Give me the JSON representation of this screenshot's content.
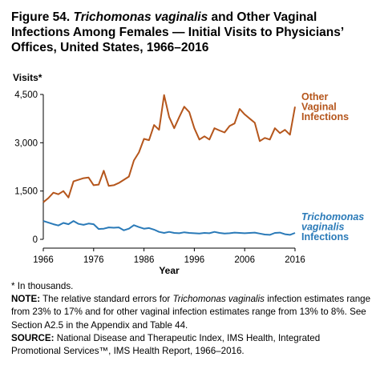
{
  "figure": {
    "title_prefix": "Figure 54. ",
    "title_italic": "Trichomonas vaginalis",
    "title_rest": " and Other Vaginal Infections Among Females — Initial Visits to Physicians’ Offices, United States, 1966–2016"
  },
  "chart_data": {
    "type": "line",
    "ylabel": "Visits*",
    "xlabel": "Year",
    "xlim": [
      1966,
      2016
    ],
    "ylim": [
      0,
      4500
    ],
    "xticks": [
      "1966",
      "1976",
      "1986",
      "1996",
      "2006",
      "2016"
    ],
    "yticks": [
      "0",
      "1,500",
      "3,000",
      "4,500"
    ],
    "grid": false,
    "legend": "inline labels at right end of each series",
    "series": [
      {
        "name_lines": [
          "Other",
          "Vaginal",
          "Infections"
        ],
        "color": "#b5561c",
        "x": [
          1966,
          1967,
          1968,
          1969,
          1970,
          1971,
          1972,
          1973,
          1974,
          1975,
          1976,
          1977,
          1978,
          1979,
          1980,
          1981,
          1982,
          1983,
          1984,
          1985,
          1986,
          1987,
          1988,
          1989,
          1990,
          1991,
          1992,
          1993,
          1994,
          1995,
          1996,
          1997,
          1998,
          1999,
          2000,
          2001,
          2002,
          2003,
          2004,
          2005,
          2006,
          2007,
          2008,
          2009,
          2010,
          2011,
          2012,
          2013,
          2014,
          2015,
          2016
        ],
        "values": [
          1150,
          1280,
          1450,
          1400,
          1500,
          1300,
          1800,
          1850,
          1900,
          1920,
          1680,
          1700,
          2130,
          1660,
          1680,
          1750,
          1850,
          1950,
          2450,
          2700,
          3120,
          3080,
          3550,
          3400,
          4480,
          3800,
          3450,
          3800,
          4120,
          3950,
          3450,
          3100,
          3200,
          3100,
          3450,
          3380,
          3320,
          3520,
          3600,
          4050,
          3880,
          3750,
          3620,
          3050,
          3150,
          3100,
          3450,
          3300,
          3400,
          3250,
          4120
        ]
      },
      {
        "name_lines": [
          "Trichomonas",
          "vaginalis",
          "Infections"
        ],
        "color": "#2a7ab8",
        "x": [
          1966,
          1967,
          1968,
          1969,
          1970,
          1971,
          1972,
          1973,
          1974,
          1975,
          1976,
          1977,
          1978,
          1979,
          1980,
          1981,
          1982,
          1983,
          1984,
          1985,
          1986,
          1987,
          1988,
          1989,
          1990,
          1991,
          1992,
          1993,
          1994,
          1995,
          1996,
          1997,
          1998,
          1999,
          2000,
          2001,
          2002,
          2003,
          2004,
          2005,
          2006,
          2007,
          2008,
          2009,
          2010,
          2011,
          2012,
          2013,
          2014,
          2015,
          2016
        ],
        "values": [
          570,
          520,
          470,
          430,
          510,
          470,
          570,
          480,
          450,
          490,
          470,
          320,
          330,
          370,
          360,
          370,
          280,
          330,
          440,
          380,
          330,
          350,
          300,
          230,
          200,
          230,
          200,
          190,
          220,
          200,
          190,
          180,
          200,
          190,
          230,
          200,
          180,
          190,
          210,
          200,
          190,
          200,
          210,
          180,
          150,
          140,
          200,
          210,
          160,
          140,
          200
        ]
      }
    ]
  },
  "notes": {
    "footnote": "* In thousands.",
    "note_label": "NOTE:",
    "note_text_1": " The relative standard errors for ",
    "note_italic": "Trichomonas vaginalis",
    "note_text_2": " infection estimates range from 23% to 17% and for other vaginal infection estimates range from 13% to 8%. See Section A2.5 in the Appendix and Table 44.",
    "source_label": "SOURCE:",
    "source_text": " National Disease and Therapeutic Index, IMS Health, Integrated Promotional Services™, IMS Health Report, 1966–2016."
  }
}
